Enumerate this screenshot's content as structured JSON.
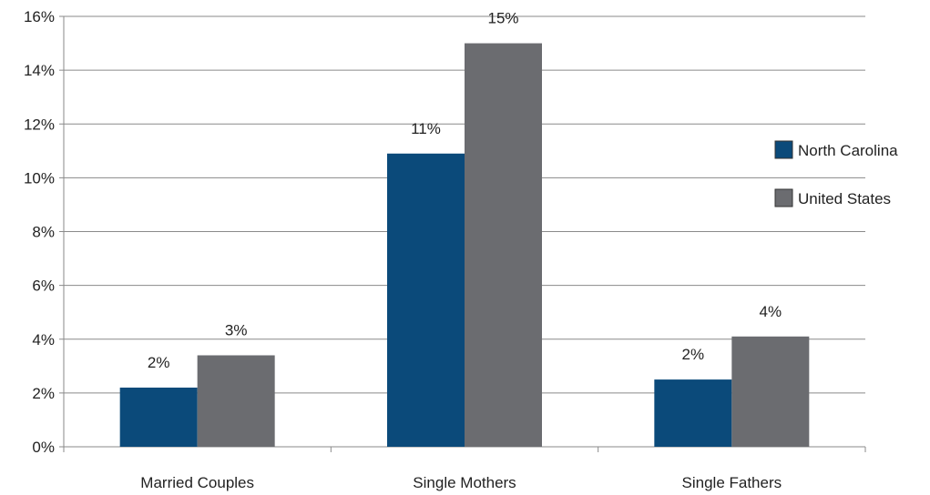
{
  "chart_data": {
    "type": "bar",
    "categories": [
      "Married Couples",
      "Single Mothers",
      "Single Fathers"
    ],
    "series": [
      {
        "name": "North Carolina",
        "values": [
          2.2,
          10.9,
          2.5
        ],
        "labels": [
          "2%",
          "11%",
          "2%"
        ],
        "color": "#0b4a7a"
      },
      {
        "name": "United States",
        "values": [
          3.4,
          15.0,
          4.1
        ],
        "labels": [
          "3%",
          "15%",
          "4%"
        ],
        "color": "#6b6c70"
      }
    ],
    "ylim": [
      0,
      16
    ],
    "yticks": [
      0,
      2,
      4,
      6,
      8,
      10,
      12,
      14,
      16
    ],
    "ytick_labels": [
      "0%",
      "2%",
      "4%",
      "6%",
      "8%",
      "10%",
      "12%",
      "14%",
      "16%"
    ],
    "grid": true,
    "legend": "right",
    "title": "",
    "xlabel": "",
    "ylabel": ""
  }
}
